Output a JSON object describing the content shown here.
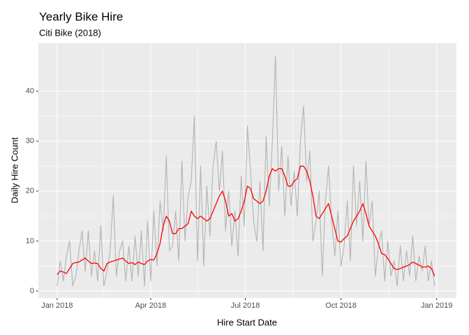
{
  "chart_data": {
    "type": "line",
    "title": "Yearly Bike Hire",
    "subtitle": "Citi Bike (2018)",
    "x_label": "Hire Start Date",
    "y_label": "Daily Hire Count",
    "x": [
      0,
      3,
      6,
      9,
      12,
      15,
      18,
      21,
      24,
      27,
      30,
      33,
      36,
      39,
      42,
      45,
      48,
      51,
      54,
      57,
      60,
      63,
      66,
      69,
      72,
      75,
      78,
      81,
      84,
      87,
      90,
      93,
      96,
      99,
      102,
      105,
      108,
      111,
      114,
      117,
      120,
      123,
      126,
      129,
      132,
      135,
      138,
      141,
      144,
      147,
      150,
      153,
      156,
      159,
      162,
      165,
      168,
      171,
      174,
      177,
      180,
      183,
      186,
      189,
      192,
      195,
      198,
      201,
      204,
      207,
      210,
      213,
      216,
      219,
      222,
      225,
      228,
      231,
      234,
      237,
      240,
      243,
      246,
      249,
      252,
      255,
      258,
      261,
      264,
      267,
      270,
      273,
      276,
      279,
      282,
      285,
      288,
      291,
      294,
      297,
      300,
      303,
      306,
      309,
      312,
      315,
      318,
      321,
      324,
      327,
      330,
      333,
      336,
      339,
      342,
      345,
      348,
      351,
      354,
      357,
      360,
      363
    ],
    "series": [
      {
        "color": "#b3b3b3",
        "values": [
          1,
          6,
          2,
          7,
          10,
          1,
          3,
          8,
          12,
          4,
          12,
          3,
          8,
          2,
          13,
          1,
          4,
          8,
          19,
          3,
          8,
          10,
          2,
          9,
          2,
          11,
          3,
          12,
          1,
          14,
          2,
          16,
          5,
          18,
          12,
          27,
          8,
          9,
          16,
          6,
          26,
          10,
          19,
          22,
          35,
          6,
          25,
          5,
          21,
          11,
          25,
          30,
          20,
          28,
          12,
          20,
          9,
          16,
          7,
          23,
          13,
          33,
          24,
          14,
          10,
          22,
          8,
          31,
          17,
          30,
          47,
          20,
          29,
          15,
          27,
          17,
          24,
          15,
          30,
          37,
          22,
          28,
          10,
          14,
          20,
          3,
          18,
          25,
          14,
          7,
          16,
          5,
          9,
          18,
          6,
          25,
          13,
          22,
          10,
          26,
          13,
          18,
          3,
          9,
          12,
          2,
          10,
          3,
          6,
          1,
          9,
          2,
          8,
          3,
          11,
          2,
          7,
          4,
          9,
          2,
          6,
          1
        ]
      },
      {
        "color": "#ff0000",
        "values": [
          3.3,
          4,
          3.8,
          3.5,
          4.5,
          5.5,
          5.7,
          5.8,
          6.2,
          6.6,
          6,
          5.5,
          5.6,
          5.5,
          4.5,
          4,
          5.5,
          5.8,
          6,
          6.2,
          6.4,
          6.6,
          6,
          5.5,
          5.7,
          5.3,
          5.8,
          5.5,
          5.3,
          6,
          6.3,
          6.2,
          7.5,
          9.5,
          13,
          15,
          14,
          11.5,
          11.5,
          12.5,
          12.5,
          13,
          13.5,
          16,
          15,
          14.5,
          15,
          14.5,
          14,
          14.5,
          16,
          17.5,
          19,
          20,
          18,
          15,
          15.5,
          14,
          14.5,
          16,
          18,
          21,
          20.5,
          18.5,
          18,
          17.5,
          18,
          20,
          23,
          24.5,
          24,
          24.5,
          24.5,
          23,
          21,
          21,
          22,
          22.5,
          25,
          25,
          24,
          22,
          19,
          15,
          14.5,
          15.5,
          16.5,
          17.5,
          15,
          12.5,
          10,
          9.8,
          10.5,
          11,
          12.5,
          14,
          15,
          16,
          17.5,
          15.5,
          13,
          12,
          11,
          9.5,
          7.5,
          7.3,
          6.5,
          5.5,
          4.5,
          4.3,
          4.5,
          4.8,
          5,
          5.3,
          5.8,
          5.5,
          5.2,
          4.8,
          4.8,
          5,
          4.5,
          3
        ]
      }
    ],
    "xlim": [
      -18,
      384
    ],
    "ylim": [
      -1.4,
      49.6
    ],
    "xticks": [
      {
        "value": 0,
        "label": "Jan 2018"
      },
      {
        "value": 90,
        "label": "Apr 2018"
      },
      {
        "value": 181,
        "label": "Jul 2018"
      },
      {
        "value": 273,
        "label": "Oct 2018"
      },
      {
        "value": 365,
        "label": "Jan 2019"
      }
    ],
    "yticks": [
      0,
      10,
      20,
      30,
      40
    ],
    "grid": true
  }
}
